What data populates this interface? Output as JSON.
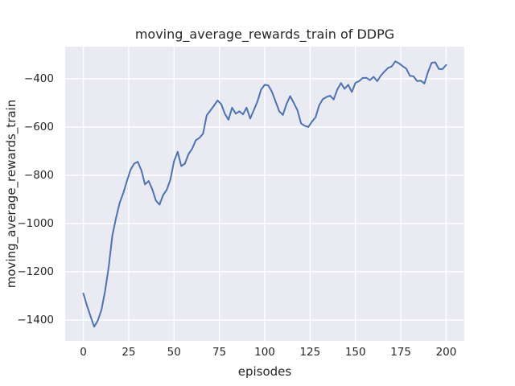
{
  "figure": {
    "title": "moving_average_rewards_train of DDPG",
    "xlabel": "episodes",
    "ylabel": "moving_average_rewards_train",
    "background_color": "#ffffff",
    "axes_background_color": "#eaeaf2",
    "grid_color": "#ffffff",
    "text_color": "#262626",
    "line_color": "#4c72b0"
  },
  "chart_data": {
    "type": "line",
    "title": "moving_average_rewards_train of DDPG",
    "xlabel": "episodes",
    "ylabel": "moving_average_rewards_train",
    "grid": true,
    "legend_position": "none",
    "xlim": [
      -10,
      210
    ],
    "ylim": [
      -1487,
      -267
    ],
    "xticks": [
      {
        "value": 0,
        "label": "0"
      },
      {
        "value": 25,
        "label": "25"
      },
      {
        "value": 50,
        "label": "50"
      },
      {
        "value": 75,
        "label": "75"
      },
      {
        "value": 100,
        "label": "100"
      },
      {
        "value": 125,
        "label": "125"
      },
      {
        "value": 150,
        "label": "150"
      },
      {
        "value": 175,
        "label": "175"
      },
      {
        "value": 200,
        "label": "200"
      }
    ],
    "yticks": [
      {
        "value": -400,
        "label": "−400"
      },
      {
        "value": -600,
        "label": "−600"
      },
      {
        "value": -800,
        "label": "−800"
      },
      {
        "value": -1000,
        "label": "−1000"
      },
      {
        "value": -1200,
        "label": "−1200"
      },
      {
        "value": -1400,
        "label": "−1400"
      }
    ],
    "series": [
      {
        "name": "moving_average_rewards_train",
        "color": "#4c72b0",
        "x": [
          0,
          2,
          4,
          6,
          8,
          10,
          12,
          14,
          16,
          18,
          20,
          22,
          24,
          26,
          28,
          30,
          32,
          34,
          36,
          38,
          40,
          42,
          44,
          46,
          48,
          50,
          52,
          54,
          56,
          58,
          60,
          62,
          64,
          66,
          68,
          70,
          72,
          74,
          76,
          78,
          80,
          82,
          84,
          86,
          88,
          90,
          92,
          94,
          96,
          98,
          100,
          102,
          104,
          106,
          108,
          110,
          112,
          114,
          116,
          118,
          120,
          122,
          124,
          126,
          128,
          130,
          132,
          134,
          136,
          138,
          140,
          142,
          144,
          146,
          148,
          150,
          152,
          154,
          156,
          158,
          160,
          162,
          164,
          166,
          168,
          170,
          172,
          174,
          176,
          178,
          180,
          182,
          184,
          186,
          188,
          190,
          192,
          194,
          196,
          198,
          200
        ],
        "y": [
          -1290,
          -1340,
          -1385,
          -1428,
          -1402,
          -1358,
          -1280,
          -1180,
          -1050,
          -978,
          -915,
          -875,
          -825,
          -778,
          -752,
          -744,
          -780,
          -838,
          -824,
          -858,
          -905,
          -922,
          -882,
          -860,
          -818,
          -742,
          -703,
          -762,
          -752,
          -712,
          -690,
          -655,
          -645,
          -628,
          -552,
          -532,
          -512,
          -490,
          -505,
          -545,
          -570,
          -520,
          -545,
          -535,
          -548,
          -520,
          -565,
          -530,
          -494,
          -445,
          -425,
          -428,
          -455,
          -495,
          -535,
          -550,
          -505,
          -472,
          -500,
          -530,
          -585,
          -595,
          -600,
          -578,
          -560,
          -510,
          -485,
          -476,
          -470,
          -486,
          -445,
          -418,
          -442,
          -425,
          -455,
          -417,
          -410,
          -397,
          -396,
          -406,
          -392,
          -410,
          -387,
          -370,
          -355,
          -349,
          -328,
          -336,
          -348,
          -358,
          -388,
          -390,
          -410,
          -408,
          -420,
          -372,
          -334,
          -332,
          -360,
          -360,
          -343
        ]
      }
    ]
  }
}
